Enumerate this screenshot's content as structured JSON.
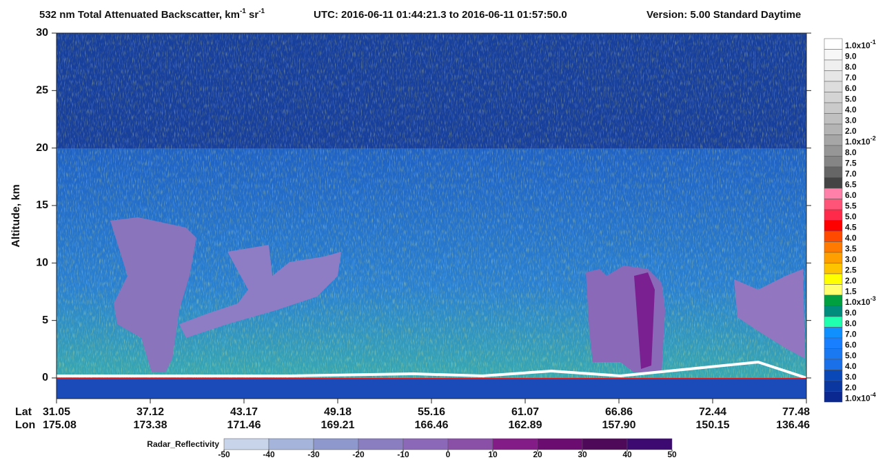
{
  "chart_data": {
    "type": "curtain",
    "title": {
      "prefix": "532 nm Total Attenuated Backscatter, km",
      "sup1": "-1",
      "mid": " sr",
      "sup2": "-1",
      "utc": "UTC:  2016-06-11 01:44:21.3  to  2016-06-11 01:57:50.0",
      "version": "Version: 5.00  Standard  Daytime"
    },
    "ylabel": "Altitude, km",
    "ylim": [
      -1.8,
      30
    ],
    "yticks": [
      0,
      5,
      10,
      15,
      20,
      25,
      30
    ],
    "row_labels": {
      "lat": "Lat",
      "lon": "Lon"
    },
    "lat": [
      31.05,
      37.12,
      43.17,
      49.18,
      55.16,
      61.07,
      66.86,
      72.44,
      77.48
    ],
    "lon": [
      175.08,
      173.38,
      171.46,
      169.21,
      166.46,
      162.89,
      157.9,
      150.15,
      136.46
    ],
    "lon_labels": [
      "175.08",
      "173.38",
      "171.46",
      "169.21",
      "166.46",
      "162.89",
      "157.90",
      "150.15",
      "136.46"
    ],
    "backscatter_scale": [
      {
        "label": "1.0x10",
        "exp": "-1",
        "color": "#ffffff"
      },
      {
        "label": "9.0",
        "color": "#f7f7f7"
      },
      {
        "label": "8.0",
        "color": "#efefef"
      },
      {
        "label": "7.0",
        "color": "#e6e6e6"
      },
      {
        "label": "6.0",
        "color": "#dddddd"
      },
      {
        "label": "5.0",
        "color": "#d4d4d4"
      },
      {
        "label": "4.0",
        "color": "#cacaca"
      },
      {
        "label": "3.0",
        "color": "#c0c0c0"
      },
      {
        "label": "2.0",
        "color": "#b4b4b4"
      },
      {
        "label": "1.0x10",
        "exp": "-2",
        "color": "#a6a6a6"
      },
      {
        "label": "8.0",
        "color": "#969696"
      },
      {
        "label": "7.5",
        "color": "#858585"
      },
      {
        "label": "7.0",
        "color": "#666666"
      },
      {
        "label": "6.5",
        "color": "#444444"
      },
      {
        "label": "6.0",
        "color": "#ff80a8"
      },
      {
        "label": "5.5",
        "color": "#ff5478"
      },
      {
        "label": "5.0",
        "color": "#ff2a4a"
      },
      {
        "label": "4.5",
        "color": "#ff0000"
      },
      {
        "label": "4.0",
        "color": "#ff4a00"
      },
      {
        "label": "3.5",
        "color": "#ff7a00"
      },
      {
        "label": "3.0",
        "color": "#ffa000"
      },
      {
        "label": "2.5",
        "color": "#ffc400"
      },
      {
        "label": "2.0",
        "color": "#ffff00"
      },
      {
        "label": "1.5",
        "color": "#ffff70"
      },
      {
        "label": "1.0x10",
        "exp": "-3",
        "color": "#00a040"
      },
      {
        "label": "9.0",
        "color": "#008c7c"
      },
      {
        "label": "8.0",
        "color": "#20ffb0"
      },
      {
        "label": "7.0",
        "color": "#1090ff"
      },
      {
        "label": "6.0",
        "color": "#1880ff"
      },
      {
        "label": "5.0",
        "color": "#1a78f0"
      },
      {
        "label": "4.0",
        "color": "#1a70e8"
      },
      {
        "label": "3.0",
        "color": "#0a48b8"
      },
      {
        "label": "2.0",
        "color": "#0a38a0"
      },
      {
        "label": "1.0x10",
        "exp": "-4",
        "color": "#0a2890"
      }
    ],
    "radar_label": "Radar_Reflectivity",
    "radar_ticks": [
      -50,
      -40,
      -30,
      -20,
      -10,
      0,
      10,
      20,
      30,
      40,
      50
    ],
    "radar_colors": [
      "#c8d4ea",
      "#a4b4da",
      "#8e98cc",
      "#8a7ec0",
      "#8c68b8",
      "#8a50a8",
      "#841c88",
      "#6a0c70",
      "#4e0a58",
      "#3c0a70"
    ]
  }
}
